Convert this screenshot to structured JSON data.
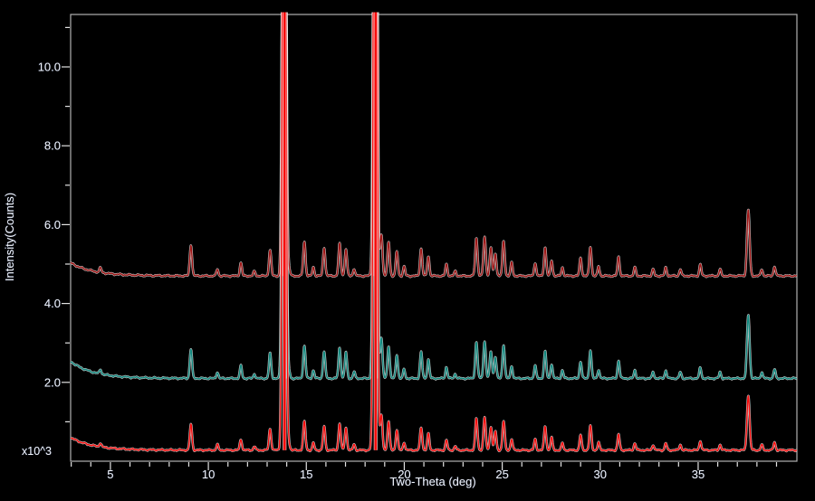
{
  "figure": {
    "background_color": "#000000",
    "axis_color": "#b0b0b0",
    "tick_color": "#e2e2e2",
    "label_color": "#f2f5fa",
    "label_halo_color": "#1b2540"
  },
  "chart_data": {
    "type": "line",
    "title": "",
    "xlabel": "Two-Theta (deg)",
    "ylabel": "Intensity(Counts)",
    "y_multiplier": "x10^3",
    "grid": false,
    "legend": "none",
    "x_range": [
      2.97,
      40.04
    ],
    "y_range": [
      0,
      11.33
    ],
    "x_ticks": [
      {
        "v": 5,
        "label": "5"
      },
      {
        "v": 10,
        "label": "10"
      },
      {
        "v": 15,
        "label": "15"
      },
      {
        "v": 20,
        "label": "20"
      },
      {
        "v": 25,
        "label": "25"
      },
      {
        "v": 30,
        "label": "30"
      },
      {
        "v": 35,
        "label": "35"
      }
    ],
    "x_minor_step": 1,
    "y_ticks": [
      {
        "v": 2,
        "label": "2.0"
      },
      {
        "v": 4,
        "label": "4.0"
      },
      {
        "v": 6,
        "label": "6.0"
      },
      {
        "v": 8,
        "label": "8.0"
      },
      {
        "v": 10,
        "label": "10.0"
      }
    ],
    "y_minor_step": 1,
    "clipped_peaks_two_theta": [
      13.87,
      18.52
    ],
    "peaks": [
      [
        4.49,
        0.1
      ],
      [
        9.11,
        0.65
      ],
      [
        10.46,
        0.14
      ],
      [
        11.66,
        0.28
      ],
      [
        12.35,
        0.1
      ],
      [
        13.15,
        0.55
      ],
      [
        14.12,
        0.15
      ],
      [
        14.9,
        0.72
      ],
      [
        15.36,
        0.18
      ],
      [
        15.91,
        0.6
      ],
      [
        16.7,
        0.68
      ],
      [
        17.02,
        0.58
      ],
      [
        17.44,
        0.15
      ],
      [
        18.83,
        0.88
      ],
      [
        19.2,
        0.72
      ],
      [
        19.62,
        0.52
      ],
      [
        19.99,
        0.2
      ],
      [
        20.86,
        0.58
      ],
      [
        21.23,
        0.42
      ],
      [
        22.15,
        0.25
      ],
      [
        22.6,
        0.1
      ],
      [
        23.68,
        0.8
      ],
      [
        24.1,
        0.82
      ],
      [
        24.42,
        0.6
      ],
      [
        24.65,
        0.48
      ],
      [
        25.07,
        0.74
      ],
      [
        25.48,
        0.28
      ],
      [
        26.68,
        0.28
      ],
      [
        27.19,
        0.6
      ],
      [
        27.52,
        0.32
      ],
      [
        28.07,
        0.18
      ],
      [
        29.0,
        0.38
      ],
      [
        29.5,
        0.62
      ],
      [
        29.92,
        0.2
      ],
      [
        30.94,
        0.4
      ],
      [
        31.77,
        0.18
      ],
      [
        32.7,
        0.14
      ],
      [
        33.35,
        0.18
      ],
      [
        34.09,
        0.14
      ],
      [
        35.11,
        0.24
      ],
      [
        36.12,
        0.14
      ],
      [
        37.56,
        1.4
      ],
      [
        38.25,
        0.14
      ],
      [
        38.9,
        0.2
      ]
    ],
    "series": [
      {
        "name": "pattern-top-dark-red",
        "color": "#a01616",
        "baseline_offset": 4.7,
        "scale": 1.2,
        "low_angle_bg": 0.33,
        "bar_dx": -1.2
      },
      {
        "name": "pattern-middle-teal",
        "color": "#11897f",
        "baseline_offset": 2.1,
        "scale": 1.15,
        "low_angle_bg": 0.43,
        "bar_dx": 1.8
      },
      {
        "name": "pattern-bottom-red",
        "color": "#f80c0c",
        "baseline_offset": 0.28,
        "scale": 1.0,
        "low_angle_bg": 0.32,
        "bar_dx": 0.4
      }
    ]
  }
}
